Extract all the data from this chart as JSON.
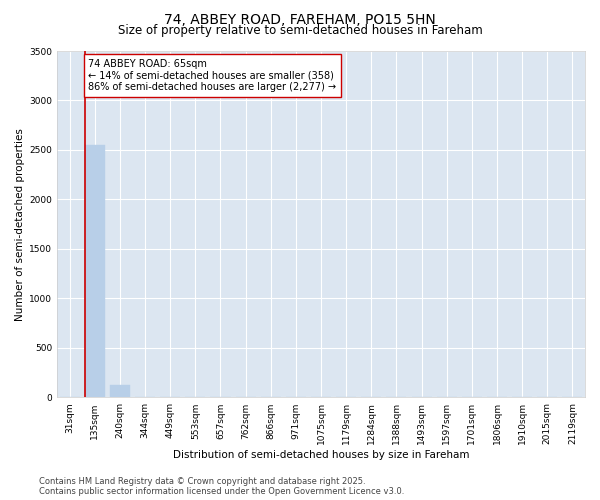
{
  "title": "74, ABBEY ROAD, FAREHAM, PO15 5HN",
  "subtitle": "Size of property relative to semi-detached houses in Fareham",
  "xlabel": "Distribution of semi-detached houses by size in Fareham",
  "ylabel": "Number of semi-detached properties",
  "categories": [
    "31sqm",
    "135sqm",
    "240sqm",
    "344sqm",
    "449sqm",
    "553sqm",
    "657sqm",
    "762sqm",
    "866sqm",
    "971sqm",
    "1075sqm",
    "1179sqm",
    "1284sqm",
    "1388sqm",
    "1493sqm",
    "1597sqm",
    "1701sqm",
    "1806sqm",
    "1910sqm",
    "2015sqm",
    "2119sqm"
  ],
  "values": [
    0,
    2550,
    130,
    0,
    0,
    0,
    0,
    0,
    0,
    0,
    0,
    0,
    0,
    0,
    0,
    0,
    0,
    0,
    0,
    0,
    0
  ],
  "bar_color": "#b8cfe8",
  "bar_edge_color": "#b8cfe8",
  "subject_line_color": "#cc0000",
  "annotation_text": "74 ABBEY ROAD: 65sqm\n← 14% of semi-detached houses are smaller (358)\n86% of semi-detached houses are larger (2,277) →",
  "annotation_box_color": "#ffffff",
  "annotation_box_edge_color": "#cc0000",
  "ylim": [
    0,
    3500
  ],
  "yticks": [
    0,
    500,
    1000,
    1500,
    2000,
    2500,
    3000,
    3500
  ],
  "background_color": "#dce6f1",
  "grid_color": "#ffffff",
  "footer_line1": "Contains HM Land Registry data © Crown copyright and database right 2025.",
  "footer_line2": "Contains public sector information licensed under the Open Government Licence v3.0.",
  "title_fontsize": 10,
  "subtitle_fontsize": 8.5,
  "axis_label_fontsize": 7.5,
  "tick_fontsize": 6.5,
  "annotation_fontsize": 7,
  "footer_fontsize": 6
}
